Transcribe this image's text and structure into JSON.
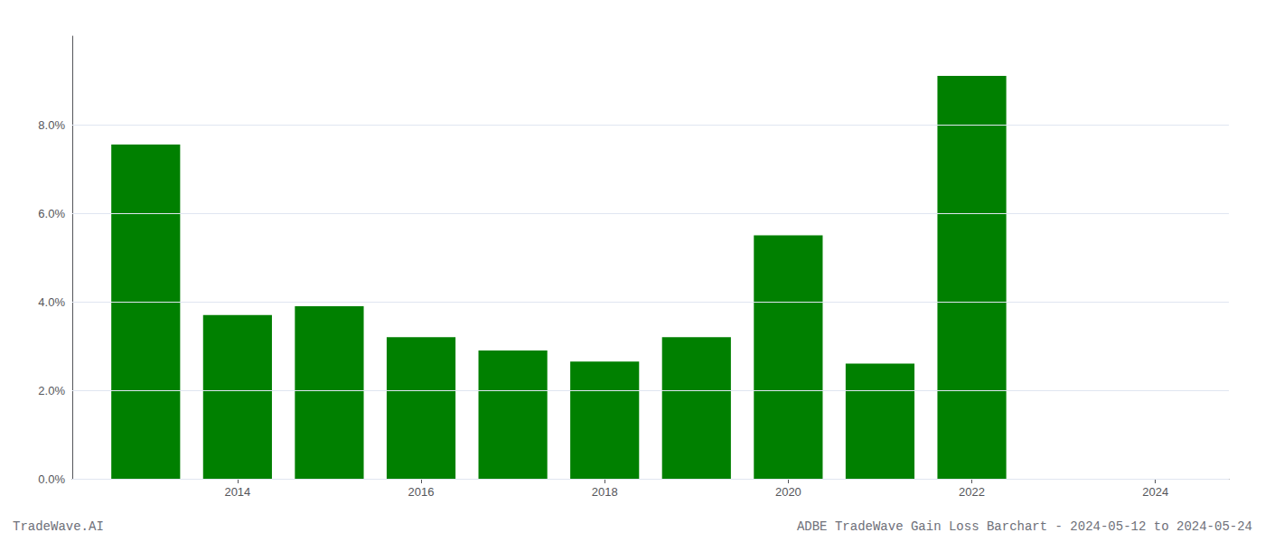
{
  "chart_data": {
    "type": "bar",
    "x": [
      2013,
      2014,
      2015,
      2016,
      2017,
      2018,
      2019,
      2020,
      2021,
      2022,
      2023
    ],
    "values": [
      0.0755,
      0.037,
      0.039,
      0.032,
      0.029,
      0.0265,
      0.032,
      0.055,
      0.026,
      0.091,
      0.0
    ],
    "color": "#008000",
    "xlim": [
      2012.2,
      2024.8
    ],
    "xticks": [
      2014,
      2016,
      2018,
      2020,
      2022,
      2024
    ],
    "ylim": [
      0,
      0.1
    ],
    "yticks": [
      {
        "value": 0.0,
        "label": "0.0%"
      },
      {
        "value": 0.02,
        "label": "2.0%"
      },
      {
        "value": 0.04,
        "label": "4.0%"
      },
      {
        "value": 0.06,
        "label": "6.0%"
      },
      {
        "value": 0.08,
        "label": "8.0%"
      }
    ],
    "grid": true,
    "annotations": [
      "TradeWave.AI",
      "ADBE TradeWave Gain Loss Barchart - 2024-05-12 to 2024-05-24"
    ]
  }
}
